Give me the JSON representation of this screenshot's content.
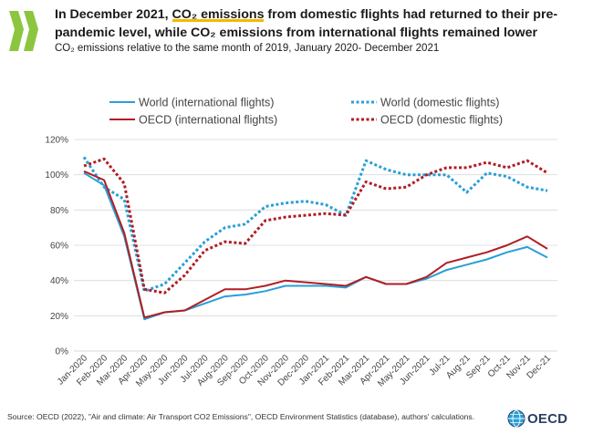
{
  "header": {
    "title_part1": "In December 2021, ",
    "title_highlight": "CO₂ emissions",
    "title_part2": " from domestic flights had returned to their pre-pandemic level, while CO₂ emissions from international flights remained lower",
    "subtitle": "CO₂ emissions relative to the same month of 2019, January 2020- December 2021"
  },
  "footer": {
    "source": "Source: OECD (2022), \"Air and climate: Air Transport CO2 Emissions\", OECD Environment Statistics (database), authors' calculations.",
    "brand": "OECD"
  },
  "colors": {
    "world": "#2a9fd6",
    "oecd": "#b01e24",
    "grid": "#d9d9d9",
    "highlight": "#f5b800",
    "logo": "#8cc63f"
  },
  "chart_data": {
    "type": "line",
    "title": "In December 2021, CO₂ emissions from domestic flights had returned to their pre-pandemic level, while CO₂ emissions from international flights remained lower",
    "subtitle": "CO₂ emissions relative to the same month of 2019, January 2020- December 2021",
    "xlabel": "",
    "ylabel": "",
    "ylim": [
      0,
      120
    ],
    "y_ticks": [
      0,
      20,
      40,
      60,
      80,
      100,
      120
    ],
    "y_tick_format": "%",
    "grid": "horizontal",
    "legend_position": "top",
    "categories": [
      "Jan-2020",
      "Feb-2020",
      "Mar-2020",
      "Apr-2020",
      "May-2020",
      "Jun-2020",
      "Jul-2020",
      "Aug-2020",
      "Sep-2020",
      "Oct-2020",
      "Nov-2020",
      "Dec-2020",
      "Jan-2021",
      "Feb-2021",
      "Mar-2021",
      "Apr-2021",
      "May-2021",
      "Jun-2021",
      "Jul-21",
      "Aug-21",
      "Sep-21",
      "Oct-21",
      "Nov-21",
      "Dec-21"
    ],
    "series": [
      {
        "name": "World (international flights)",
        "color": "#2a9fd6",
        "style": "solid",
        "values": [
          101,
          94,
          65,
          18,
          22,
          23,
          27,
          31,
          32,
          34,
          37,
          37,
          37,
          36,
          42,
          38,
          38,
          41,
          46,
          49,
          52,
          56,
          59,
          53
        ]
      },
      {
        "name": "World (domestic flights)",
        "color": "#2a9fd6",
        "style": "dotted",
        "values": [
          110,
          93,
          86,
          34,
          38,
          50,
          62,
          70,
          72,
          82,
          84,
          85,
          83,
          77,
          108,
          103,
          100,
          100,
          100,
          90,
          101,
          99,
          93,
          91
        ]
      },
      {
        "name": "OECD (international flights)",
        "color": "#b01e24",
        "style": "solid",
        "values": [
          102,
          97,
          67,
          19,
          22,
          23,
          29,
          35,
          35,
          37,
          40,
          39,
          38,
          37,
          42,
          38,
          38,
          42,
          50,
          53,
          56,
          60,
          65,
          58
        ]
      },
      {
        "name": "OECD (domestic flights)",
        "color": "#b01e24",
        "style": "dotted",
        "values": [
          105,
          109,
          95,
          35,
          33,
          43,
          57,
          62,
          61,
          74,
          76,
          77,
          78,
          77,
          96,
          92,
          93,
          100,
          104,
          104,
          107,
          104,
          108,
          101
        ]
      }
    ]
  }
}
